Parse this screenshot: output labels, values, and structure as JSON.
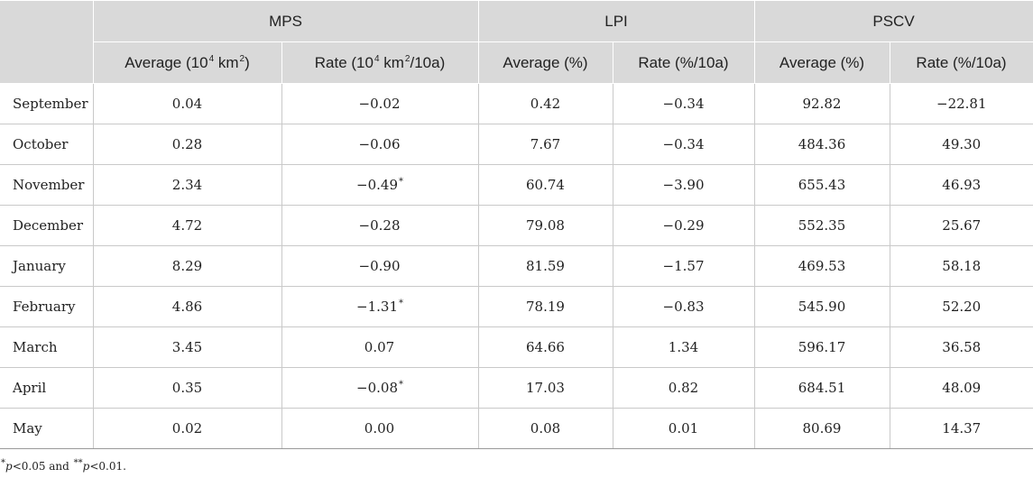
{
  "table": {
    "groups": [
      "MPS",
      "LPI",
      "PSCV"
    ],
    "subheaders": [
      {
        "text": "Average (10",
        "sup": "4",
        "rest": " km",
        "sup2": "2",
        "tail": ")"
      },
      {
        "text": "Rate (10",
        "sup": "4",
        "rest": " km",
        "sup2": "2",
        "tail": "/10a)"
      },
      {
        "text": "Average (%)"
      },
      {
        "text": "Rate (%/10a)"
      },
      {
        "text": "Average (%)"
      },
      {
        "text": "Rate (%/10a)"
      }
    ],
    "rows": [
      {
        "month": "September",
        "mps_avg": "0.04",
        "mps_rate": "−0.02",
        "mps_rate_mark": "",
        "lpi_avg": "0.42",
        "lpi_rate": "−0.34",
        "pscv_avg": "92.82",
        "pscv_rate": "−22.81"
      },
      {
        "month": "October",
        "mps_avg": "0.28",
        "mps_rate": "−0.06",
        "mps_rate_mark": "",
        "lpi_avg": "7.67",
        "lpi_rate": "−0.34",
        "pscv_avg": "484.36",
        "pscv_rate": "49.30"
      },
      {
        "month": "November",
        "mps_avg": "2.34",
        "mps_rate": "−0.49",
        "mps_rate_mark": "*",
        "lpi_avg": "60.74",
        "lpi_rate": "−3.90",
        "pscv_avg": "655.43",
        "pscv_rate": "46.93"
      },
      {
        "month": "December",
        "mps_avg": "4.72",
        "mps_rate": "−0.28",
        "mps_rate_mark": "",
        "lpi_avg": "79.08",
        "lpi_rate": "−0.29",
        "pscv_avg": "552.35",
        "pscv_rate": "25.67"
      },
      {
        "month": "January",
        "mps_avg": "8.29",
        "mps_rate": "−0.90",
        "mps_rate_mark": "",
        "lpi_avg": "81.59",
        "lpi_rate": "−1.57",
        "pscv_avg": "469.53",
        "pscv_rate": "58.18"
      },
      {
        "month": "February",
        "mps_avg": "4.86",
        "mps_rate": "−1.31",
        "mps_rate_mark": "*",
        "lpi_avg": "78.19",
        "lpi_rate": "−0.83",
        "pscv_avg": "545.90",
        "pscv_rate": "52.20"
      },
      {
        "month": "March",
        "mps_avg": "3.45",
        "mps_rate": "0.07",
        "mps_rate_mark": "",
        "lpi_avg": "64.66",
        "lpi_rate": "1.34",
        "pscv_avg": "596.17",
        "pscv_rate": "36.58"
      },
      {
        "month": "April",
        "mps_avg": "0.35",
        "mps_rate": "−0.08",
        "mps_rate_mark": "*",
        "lpi_avg": "17.03",
        "lpi_rate": "0.82",
        "pscv_avg": "684.51",
        "pscv_rate": "48.09"
      },
      {
        "month": "May",
        "mps_avg": "0.02",
        "mps_rate": "0.00",
        "mps_rate_mark": "",
        "lpi_avg": "0.08",
        "lpi_rate": "0.01",
        "pscv_avg": "80.69",
        "pscv_rate": "14.37"
      }
    ]
  },
  "footnote": {
    "mark1": "*",
    "p1": "p",
    "cond1": "<0.05 and ",
    "mark2": "**",
    "p2": "p",
    "cond2": "<0.01."
  }
}
